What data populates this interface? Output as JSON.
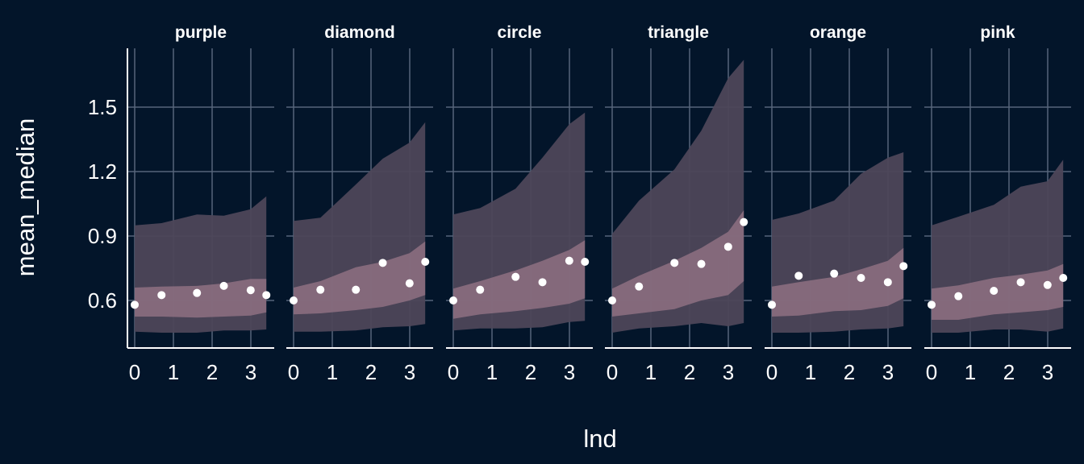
{
  "chart_data": {
    "type": "area",
    "xlabel": "lnd",
    "ylabel": "mean_median",
    "xlim": [
      -0.2,
      3.6
    ],
    "ylim": [
      0.43,
      1.78
    ],
    "x_ticks": [
      0,
      1,
      2,
      3
    ],
    "y_ticks": [
      0.6,
      0.9,
      1.2,
      1.5
    ],
    "y_tick_labels": [
      "0.6",
      "0.9",
      "1.2",
      "1.5"
    ],
    "grid": true,
    "colors": {
      "background": "#03152a",
      "grid": "#56657a",
      "outer_band": "#4d4659",
      "inner_band": "#8b6e80",
      "points": "#ffffff",
      "text": "#ffffff"
    },
    "band_x": [
      0,
      0.693,
      1.609,
      2.303,
      2.996,
      3.401
    ],
    "facets": [
      {
        "name": "purple",
        "points": [
          [
            0,
            0.58
          ],
          [
            0.693,
            0.625
          ],
          [
            1.609,
            0.635
          ],
          [
            2.303,
            0.668
          ],
          [
            2.996,
            0.648
          ],
          [
            3.401,
            0.625
          ]
        ],
        "inner_upper": [
          0.66,
          0.665,
          0.668,
          0.68,
          0.7,
          0.7
        ],
        "inner_lower": [
          0.525,
          0.525,
          0.52,
          0.525,
          0.53,
          0.545
        ],
        "outer_upper": [
          0.95,
          0.96,
          1.0,
          0.995,
          1.025,
          1.085
        ],
        "outer_lower": [
          0.455,
          0.45,
          0.45,
          0.46,
          0.46,
          0.465
        ]
      },
      {
        "name": "diamond",
        "points": [
          [
            0,
            0.6
          ],
          [
            0.693,
            0.65
          ],
          [
            1.609,
            0.65
          ],
          [
            2.303,
            0.775
          ],
          [
            2.996,
            0.68
          ],
          [
            3.401,
            0.78
          ]
        ],
        "inner_upper": [
          0.66,
          0.69,
          0.755,
          0.78,
          0.82,
          0.875
        ],
        "inner_lower": [
          0.535,
          0.54,
          0.555,
          0.57,
          0.6,
          0.625
        ],
        "outer_upper": [
          0.97,
          0.985,
          1.14,
          1.26,
          1.335,
          1.43
        ],
        "outer_lower": [
          0.455,
          0.455,
          0.46,
          0.475,
          0.48,
          0.49
        ]
      },
      {
        "name": "circle",
        "points": [
          [
            0,
            0.6
          ],
          [
            0.693,
            0.65
          ],
          [
            1.609,
            0.71
          ],
          [
            2.303,
            0.685
          ],
          [
            2.996,
            0.785
          ],
          [
            3.401,
            0.78
          ]
        ],
        "inner_upper": [
          0.655,
          0.69,
          0.74,
          0.785,
          0.835,
          0.88
        ],
        "inner_lower": [
          0.515,
          0.535,
          0.55,
          0.565,
          0.585,
          0.61
        ],
        "outer_upper": [
          1.0,
          1.03,
          1.12,
          1.265,
          1.42,
          1.475
        ],
        "outer_lower": [
          0.46,
          0.47,
          0.47,
          0.475,
          0.5,
          0.505
        ]
      },
      {
        "name": "triangle",
        "points": [
          [
            0,
            0.6
          ],
          [
            0.693,
            0.665
          ],
          [
            1.609,
            0.775
          ],
          [
            2.303,
            0.77
          ],
          [
            2.996,
            0.85
          ],
          [
            3.401,
            0.965
          ]
        ],
        "inner_upper": [
          0.655,
          0.715,
          0.785,
          0.845,
          0.92,
          1.02
        ],
        "inner_lower": [
          0.525,
          0.54,
          0.56,
          0.6,
          0.625,
          0.69
        ],
        "outer_upper": [
          0.91,
          1.065,
          1.21,
          1.39,
          1.635,
          1.72
        ],
        "outer_lower": [
          0.45,
          0.47,
          0.48,
          0.495,
          0.48,
          0.495
        ]
      },
      {
        "name": "orange",
        "points": [
          [
            0,
            0.58
          ],
          [
            0.693,
            0.715
          ],
          [
            1.609,
            0.725
          ],
          [
            2.303,
            0.705
          ],
          [
            2.996,
            0.685
          ],
          [
            3.401,
            0.76
          ]
        ],
        "inner_upper": [
          0.665,
          0.685,
          0.71,
          0.745,
          0.785,
          0.845
        ],
        "inner_lower": [
          0.525,
          0.53,
          0.55,
          0.555,
          0.575,
          0.61
        ],
        "outer_upper": [
          0.975,
          1.005,
          1.065,
          1.19,
          1.265,
          1.29
        ],
        "outer_lower": [
          0.45,
          0.45,
          0.455,
          0.465,
          0.47,
          0.48
        ]
      },
      {
        "name": "pink",
        "points": [
          [
            0,
            0.58
          ],
          [
            0.693,
            0.62
          ],
          [
            1.609,
            0.645
          ],
          [
            2.303,
            0.685
          ],
          [
            2.996,
            0.672
          ],
          [
            3.401,
            0.705
          ]
        ],
        "inner_upper": [
          0.655,
          0.67,
          0.705,
          0.72,
          0.74,
          0.77
        ],
        "inner_lower": [
          0.51,
          0.51,
          0.535,
          0.545,
          0.555,
          0.57
        ],
        "outer_upper": [
          0.95,
          0.99,
          1.045,
          1.13,
          1.155,
          1.255
        ],
        "outer_lower": [
          0.45,
          0.45,
          0.465,
          0.465,
          0.455,
          0.47
        ]
      }
    ]
  }
}
